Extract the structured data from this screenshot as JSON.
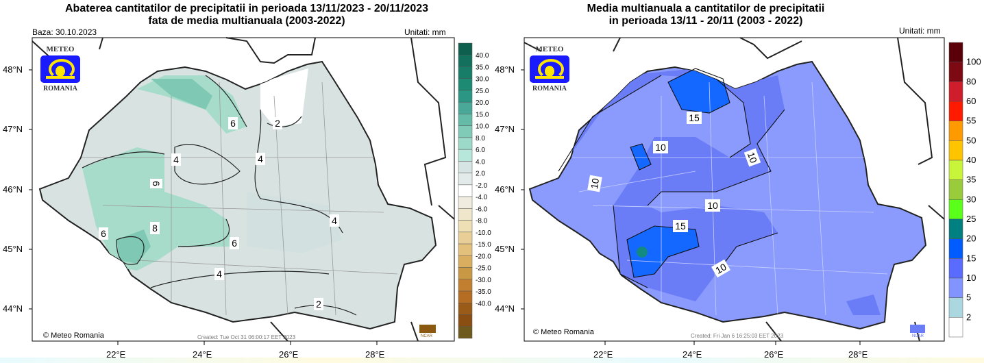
{
  "left_panel": {
    "title_line1": "Abaterea cantitatilor de precipitatii in perioada 13/11/2023 - 20/11/2023",
    "title_line2": "fata de media multianuala (2003-2022)",
    "base_label": "Baza: 30.10.2023",
    "units_label": "Unitati: mm",
    "lat_labels": [
      "48°N",
      "47°N",
      "46°N",
      "45°N",
      "44°N"
    ],
    "lon_labels": [
      "22°E",
      "24°E",
      "26°E",
      "28°E"
    ],
    "copyright": "© Meteo Romania",
    "created": "Created: Tue Oct 31 06:00:17 EET 2023",
    "ncar": "NCAR",
    "colorbar_labels": [
      "40.0",
      "35.0",
      "30.0",
      "25.0",
      "20.0",
      "15.0",
      "10.0",
      "8.0",
      "6.0",
      "4.0",
      "2.0",
      "-2.0",
      "-4.0",
      "-6.0",
      "-8.0",
      "-10.0",
      "-15.0",
      "-20.0",
      "-25.0",
      "-30.0",
      "-35.0",
      "-40.0"
    ],
    "colorbar_colors": [
      "#0f5f4f",
      "#13705d",
      "#177c68",
      "#1d8a74",
      "#2a9683",
      "#4aa898",
      "#63bba8",
      "#7fcbb8",
      "#9cd9c8",
      "#b7e6da",
      "#d6e4e3",
      "#e3ebea",
      "#ffffff",
      "#f0ece0",
      "#efe6cc",
      "#efdfb4",
      "#e9cf97",
      "#e3c07c",
      "#d9ae61",
      "#c99845",
      "#c27f30",
      "#b56d24",
      "#9a5a18",
      "#8a4e12",
      "#6e5a1c"
    ],
    "contour_labels": [
      "6",
      "2",
      "4",
      "4",
      "6",
      "8",
      "6",
      "6",
      "4",
      "4",
      "2"
    ]
  },
  "right_panel": {
    "title_line1": "Media multianuala a cantitatilor de precipitatii",
    "title_line2": "in perioada 13/11 - 20/11 (2003 - 2022)",
    "units_label": "Unitati: mm",
    "lat_labels": [
      "48°N",
      "47°N",
      "46°N",
      "45°N",
      "44°N"
    ],
    "lon_labels": [
      "22°E",
      "24°E",
      "26°E",
      "28°E"
    ],
    "copyright": "© Meteo Romania",
    "created": "Created: Fri Jan  6 16:25:03 EET 2023",
    "ncar": "NCAR",
    "colorbar_labels": [
      "100",
      "80",
      "60",
      "55",
      "50",
      "40",
      "35",
      "30",
      "25",
      "20",
      "15",
      "10",
      "5",
      "2"
    ],
    "colorbar_colors": [
      "#5a0008",
      "#7d0a12",
      "#cf1d2b",
      "#ff1a00",
      "#ff9a00",
      "#ffc400",
      "#c8f53a",
      "#9acb3a",
      "#5aff1a",
      "#008080",
      "#005cff",
      "#5a6cff",
      "#8294ff",
      "#abd8e0",
      "#ffffff"
    ],
    "contour_labels": [
      "15",
      "10",
      "10",
      "10",
      "10",
      "15",
      "10"
    ]
  },
  "logo": {
    "top": "METEO",
    "bottom": "ROMANIA"
  }
}
